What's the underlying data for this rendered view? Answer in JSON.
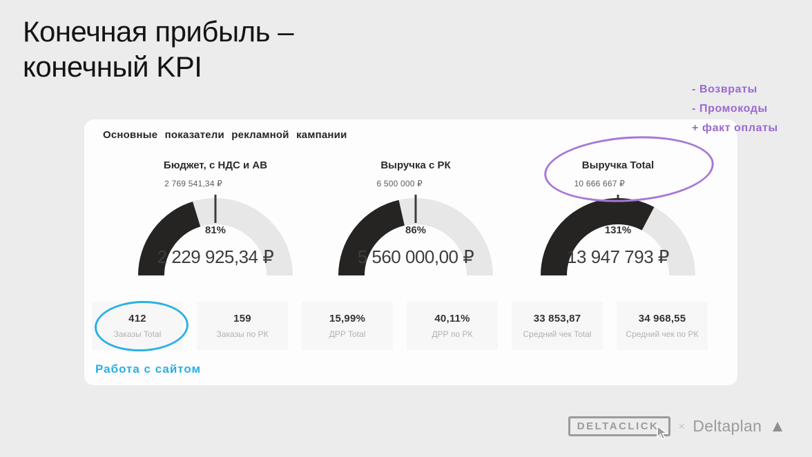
{
  "title": "Конечная прибыль –\nконечный KPI",
  "annotations": {
    "notes": [
      "- Возвраты",
      "- Промокоды",
      "+ факт оплаты"
    ],
    "site_note": "Работа с сайтом"
  },
  "card": {
    "title": "Основные показатели рекламной кампании"
  },
  "colors": {
    "gauge_dark": "#252423",
    "gauge_light": "#e7e7e7",
    "tick": "#3c3c3c",
    "annotation_purple": "#9a68d2",
    "annotation_cyan": "#29b0e3"
  },
  "chart_data": {
    "type": "gauge",
    "gauges": [
      {
        "title": "Бюджет, с НДС и АВ",
        "target_label": "2 769 541,34 ₽",
        "target": 2769541.34,
        "percent": 81,
        "percent_label": "81%",
        "value": 2229925.34,
        "value_label": "2 229 925,34 ₽",
        "min": 0,
        "max": 5539082.68
      },
      {
        "title": "Выручка с РК",
        "target_label": "6 500 000 ₽",
        "target": 6500000,
        "percent": 86,
        "percent_label": "86%",
        "value": 5560000.0,
        "value_label": "5 560 000,00 ₽",
        "min": 0,
        "max": 13000000
      },
      {
        "title": "Выручка Total",
        "target_label": "10 666 667 ₽",
        "target": 10666667,
        "percent": 131,
        "percent_label": "131%",
        "value": 13947793,
        "value_label": "13 947 793 ₽",
        "min": 0,
        "max": 21333334
      }
    ],
    "kpi_cards": [
      {
        "value": "412",
        "label": "Заказы Total"
      },
      {
        "value": "159",
        "label": "Заказы по РК"
      },
      {
        "value": "15,99%",
        "label": "ДРР Total"
      },
      {
        "value": "40,11%",
        "label": "ДРР по РК"
      },
      {
        "value": "33 853,87",
        "label": "Средний чек Total"
      },
      {
        "value": "34 968,55",
        "label": "Средний чек по РК"
      }
    ]
  },
  "footer": {
    "brand_left": "DELTACLICK",
    "separator": "×",
    "brand_right": "Deltaplan"
  }
}
